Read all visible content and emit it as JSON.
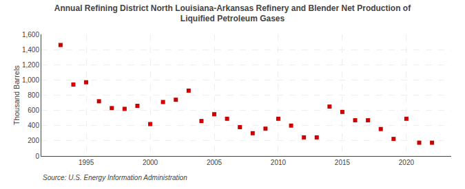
{
  "chart_data": {
    "type": "scatter",
    "title": "Annual Refining District North Louisiana-Arkansas Refinery and Blender Net Production of\nLiquified Petroleum Gases",
    "ylabel": "Thousand Barrels",
    "annotations": [
      "Source: U.S. Energy Information Administration"
    ],
    "x": [
      1993,
      1994,
      1995,
      1996,
      1997,
      1998,
      1999,
      2000,
      2001,
      2002,
      2003,
      2004,
      2005,
      2006,
      2007,
      2008,
      2009,
      2010,
      2011,
      2012,
      2013,
      2014,
      2015,
      2016,
      2017,
      2018,
      2019,
      2020,
      2021,
      2022
    ],
    "values": [
      1460,
      940,
      970,
      720,
      630,
      620,
      660,
      420,
      710,
      740,
      860,
      460,
      550,
      490,
      380,
      300,
      360,
      490,
      400,
      245,
      245,
      650,
      580,
      470,
      470,
      355,
      225,
      490,
      175,
      175
    ],
    "color": "#cc0000",
    "marker": "square",
    "xlim": [
      1991.5,
      2023.5
    ],
    "xticks": [
      1995,
      2000,
      2005,
      2010,
      2015,
      2020
    ],
    "ylim": [
      0,
      1600
    ],
    "yticks": [
      0,
      200,
      400,
      600,
      800,
      {
        "value": 1000,
        "label": "1,000"
      },
      {
        "value": 1200,
        "label": "1,200"
      },
      {
        "value": 1400,
        "label": "1,400"
      },
      {
        "value": 1600,
        "label": "1,600"
      }
    ],
    "grid": true
  }
}
